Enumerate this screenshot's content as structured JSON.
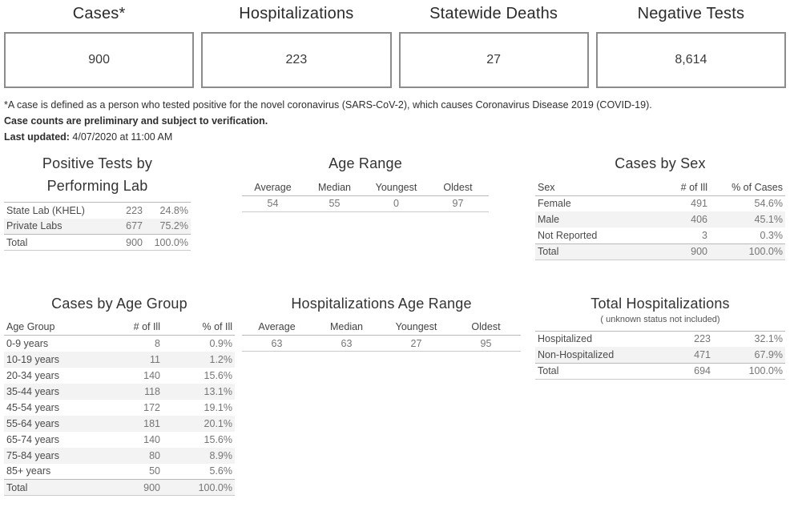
{
  "colors": {
    "box_border": "#8c8c8c",
    "row_band": "#f3f3f3",
    "rule": "#b9b9b9"
  },
  "chart_data": [
    {
      "type": "kpi",
      "items": [
        {
          "label": "Cases*",
          "value": "900"
        },
        {
          "label": "Hospitalizations",
          "value": "223"
        },
        {
          "label": "Statewide Deaths",
          "value": "27"
        },
        {
          "label": "Negative Tests",
          "value": "8,614"
        }
      ]
    },
    {
      "key": "positive-tests-by-performing-lab",
      "type": "table",
      "title": "Positive Tests by Performing Lab",
      "title_lines": [
        "Positive Tests by",
        "Performing Lab"
      ],
      "headers": null,
      "align": [
        "l",
        "r",
        "r"
      ],
      "widths": [
        128,
        48,
        57
      ],
      "topline": true,
      "first_col_dark": true,
      "rows": [
        [
          "State Lab (KHEL)",
          "223",
          "24.8%"
        ],
        [
          "Private Labs",
          "677",
          "75.2%"
        ],
        [
          "Total",
          "900",
          "100.0%"
        ]
      ]
    },
    {
      "key": "cases-age-range",
      "type": "table",
      "title": "Age Range",
      "headers": [
        "Average",
        "Median",
        "Youngest",
        "Oldest"
      ],
      "align": [
        "c",
        "c",
        "c",
        "c"
      ],
      "widths": [
        77,
        77,
        77,
        77
      ],
      "topline": false,
      "first_col_dark": false,
      "rows": [
        [
          "54",
          "55",
          "0",
          "97"
        ]
      ]
    },
    {
      "key": "cases-by-sex",
      "type": "table",
      "title": "Cases by Sex",
      "headers": [
        "Sex",
        "# of Ill",
        "% of Cases"
      ],
      "align": [
        "l",
        "r",
        "r"
      ],
      "widths": [
        140,
        78,
        94
      ],
      "topline": false,
      "first_col_dark": true,
      "rows": [
        [
          "Female",
          "491",
          "54.6%"
        ],
        [
          "Male",
          "406",
          "45.1%"
        ],
        [
          "Not Reported",
          "3",
          "0.3%"
        ],
        [
          "Total",
          "900",
          "100.0%"
        ]
      ]
    },
    {
      "key": "cases-by-age-group",
      "type": "table",
      "title": "Cases by Age Group",
      "headers": [
        "Age Group",
        "# of Ill",
        "% of Ill"
      ],
      "align": [
        "l",
        "r",
        "r"
      ],
      "widths": [
        122,
        76,
        90
      ],
      "topline": false,
      "first_col_dark": true,
      "rows": [
        [
          "0-9 years",
          "8",
          "0.9%"
        ],
        [
          "10-19 years",
          "11",
          "1.2%"
        ],
        [
          "20-34 years",
          "140",
          "15.6%"
        ],
        [
          "35-44 years",
          "118",
          "13.1%"
        ],
        [
          "45-54 years",
          "172",
          "19.1%"
        ],
        [
          "55-64 years",
          "181",
          "20.1%"
        ],
        [
          "65-74 years",
          "140",
          "15.6%"
        ],
        [
          "75-84 years",
          "80",
          "8.9%"
        ],
        [
          "85+ years",
          "50",
          "5.6%"
        ],
        [
          "Total",
          "900",
          "100.0%"
        ]
      ]
    },
    {
      "key": "hospitalizations-age-range",
      "type": "table",
      "title": "Hospitalizations Age Range",
      "headers": [
        "Average",
        "Median",
        "Youngest",
        "Oldest"
      ],
      "align": [
        "c",
        "c",
        "c",
        "c"
      ],
      "widths": [
        87,
        87,
        87,
        87
      ],
      "topline": false,
      "first_col_dark": false,
      "rows": [
        [
          "63",
          "63",
          "27",
          "95"
        ]
      ]
    },
    {
      "key": "total-hospitalizations",
      "type": "table",
      "title": "Total Hospitalizations",
      "subtitle": "( unknown status not included)",
      "headers": null,
      "align": [
        "l",
        "r",
        "r"
      ],
      "widths": [
        150,
        72,
        90
      ],
      "topline": true,
      "first_col_dark": true,
      "rows": [
        [
          "Hospitalized",
          "223",
          "32.1%"
        ],
        [
          "Non-Hospitalized",
          "471",
          "67.9%"
        ],
        [
          "Total",
          "694",
          "100.0%"
        ]
      ]
    }
  ],
  "footnote": {
    "line1": "*A case is defined as a person who tested positive for the novel coronavirus (SARS-CoV-2), which causes Coronavirus Disease 2019 (COVID-19).",
    "line2": "Case counts are preliminary and subject to verification.",
    "last_updated_label": "Last updated:",
    "last_updated_value": " 4/07/2020 at 11:00 AM"
  }
}
